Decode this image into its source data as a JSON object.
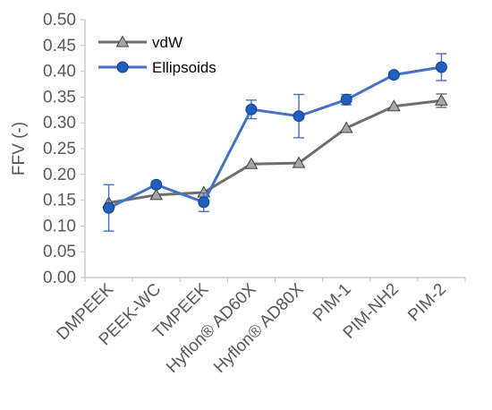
{
  "chart_data": {
    "type": "line",
    "categories": [
      "DMPEEK",
      "PEEK-WC",
      "TMPEEK",
      "Hyflon® AD60X",
      "Hyflon® AD80X",
      "PIM-1",
      "PIM-NH2",
      "PIM-2"
    ],
    "ylabel": "FFV (-)",
    "ylim": [
      0.0,
      0.5
    ],
    "yticks": [
      "0.00",
      "0.05",
      "0.10",
      "0.15",
      "0.20",
      "0.25",
      "0.30",
      "0.35",
      "0.40",
      "0.45",
      "0.50"
    ],
    "grid": false,
    "legend_position": "top-left",
    "series": [
      {
        "name": "vdW",
        "marker": "triangle",
        "color": "#6e6e6e",
        "marker_fill": "#a6a6a6",
        "values": [
          0.145,
          0.16,
          0.165,
          0.22,
          0.222,
          0.29,
          0.332,
          0.343
        ],
        "error": [
          0.0,
          0.0,
          0.0,
          0.0,
          0.0,
          0.0,
          0.0,
          0.013
        ]
      },
      {
        "name": "Ellipsoids",
        "marker": "circle",
        "color": "#4472c4",
        "marker_fill": "#1f5fbf",
        "values": [
          0.135,
          0.18,
          0.146,
          0.326,
          0.313,
          0.345,
          0.393,
          0.408
        ],
        "error": [
          0.045,
          0.0,
          0.018,
          0.018,
          0.042,
          0.01,
          0.0,
          0.026
        ]
      }
    ]
  }
}
